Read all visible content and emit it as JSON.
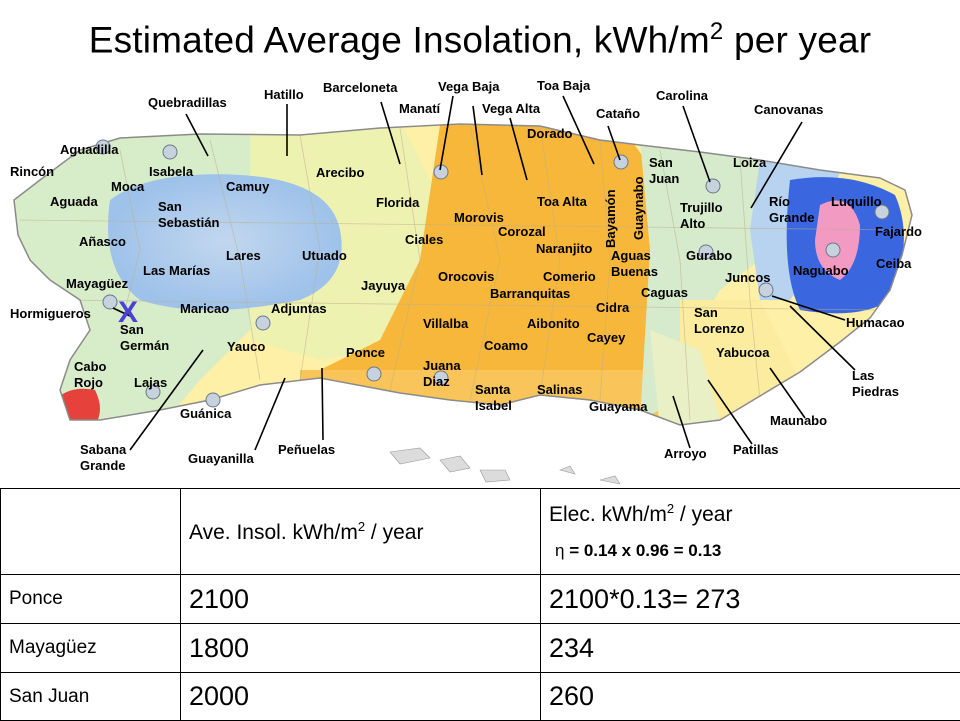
{
  "title": {
    "text": "Estimated Average Insolation, kWh/m",
    "superscript": "2",
    "suffix": " per year"
  },
  "map": {
    "marker": "X",
    "labels": [
      {
        "text": "Rincón"
      },
      {
        "text": "Aguadilla"
      },
      {
        "text": "Quebradillas"
      },
      {
        "text": "Hatillo"
      },
      {
        "text": "Barceloneta"
      },
      {
        "text": "Vega Baja"
      },
      {
        "text": "Toa Baja"
      },
      {
        "text": "Carolina"
      },
      {
        "text": "Canovanas"
      },
      {
        "text": "Manatí"
      },
      {
        "text": "Vega Alta"
      },
      {
        "text": "Cataño"
      },
      {
        "text": "Dorado"
      },
      {
        "text": "Isabela"
      },
      {
        "text": "Moca"
      },
      {
        "text": "Camuy"
      },
      {
        "text": "Arecibo"
      },
      {
        "text": "San\nJuan"
      },
      {
        "text": "Loiza"
      },
      {
        "text": "Aguada"
      },
      {
        "text": "San\nSebastián"
      },
      {
        "text": "Florida"
      },
      {
        "text": "Morovis"
      },
      {
        "text": "Toa Alta"
      },
      {
        "text": "Trujillo\nAlto"
      },
      {
        "text": "Río\nGrande"
      },
      {
        "text": "Luquillo"
      },
      {
        "text": "Añasco"
      },
      {
        "text": "Corozal"
      },
      {
        "text": "Fajardo"
      },
      {
        "text": "Ciales"
      },
      {
        "text": "Naranjito"
      },
      {
        "text": "Lares"
      },
      {
        "text": "Utuado"
      },
      {
        "text": "Aguas\nBuenas"
      },
      {
        "text": "Gurabo"
      },
      {
        "text": "Las Marías"
      },
      {
        "text": "Ceiba"
      },
      {
        "text": "Mayagüez"
      },
      {
        "text": "Naguabo"
      },
      {
        "text": "Juncos"
      },
      {
        "text": "Orocovis"
      },
      {
        "text": "Comerio"
      },
      {
        "text": "Jayuya"
      },
      {
        "text": "Barranquitas"
      },
      {
        "text": "Caguas"
      },
      {
        "text": "Hormigueros"
      },
      {
        "text": "Maricao"
      },
      {
        "text": "Adjuntas"
      },
      {
        "text": "Cidra"
      },
      {
        "text": "San\nLorenzo"
      },
      {
        "text": "Humacao"
      },
      {
        "text": "San\nGermán"
      },
      {
        "text": "Villalba"
      },
      {
        "text": "Aibonito"
      },
      {
        "text": "Cayey"
      },
      {
        "text": "Yauco"
      },
      {
        "text": "Coamo"
      },
      {
        "text": "Ponce"
      },
      {
        "text": "Yabucoa"
      },
      {
        "text": "Cabo\nRojo"
      },
      {
        "text": "Juana\nDiaz"
      },
      {
        "text": "Las\nPiedras"
      },
      {
        "text": "Lajas"
      },
      {
        "text": "Santa\nIsabel"
      },
      {
        "text": "Salinas"
      },
      {
        "text": "Guayama"
      },
      {
        "text": "Guánica"
      },
      {
        "text": "Maunabo"
      },
      {
        "text": "Peñuelas"
      },
      {
        "text": "Patillas"
      },
      {
        "text": "Sabana\nGrande"
      },
      {
        "text": "Guayanilla"
      },
      {
        "text": "Arroyo"
      }
    ],
    "vertical_labels": [
      {
        "text": "Bayamón"
      },
      {
        "text": "Guaynabo"
      }
    ]
  },
  "table": {
    "header": {
      "col1": "",
      "col2_text": "Ave. Insol. kWh/m",
      "col2_sup": "2",
      "col2_suffix": " / year",
      "col3_text": "Elec. kWh/m",
      "col3_sup": "2",
      "col3_suffix": " / year",
      "eta_symbol": "η",
      "eta_formula": " = 0.14 x 0.96 = 0.13"
    },
    "rows": [
      {
        "city": "Ponce",
        "insolation": "2100",
        "electricity": "2100*0.13= 273"
      },
      {
        "city": "Mayagüez",
        "insolation": "1800",
        "electricity": "234"
      },
      {
        "city": "San Juan",
        "insolation": "2000",
        "electricity": "260"
      }
    ]
  }
}
